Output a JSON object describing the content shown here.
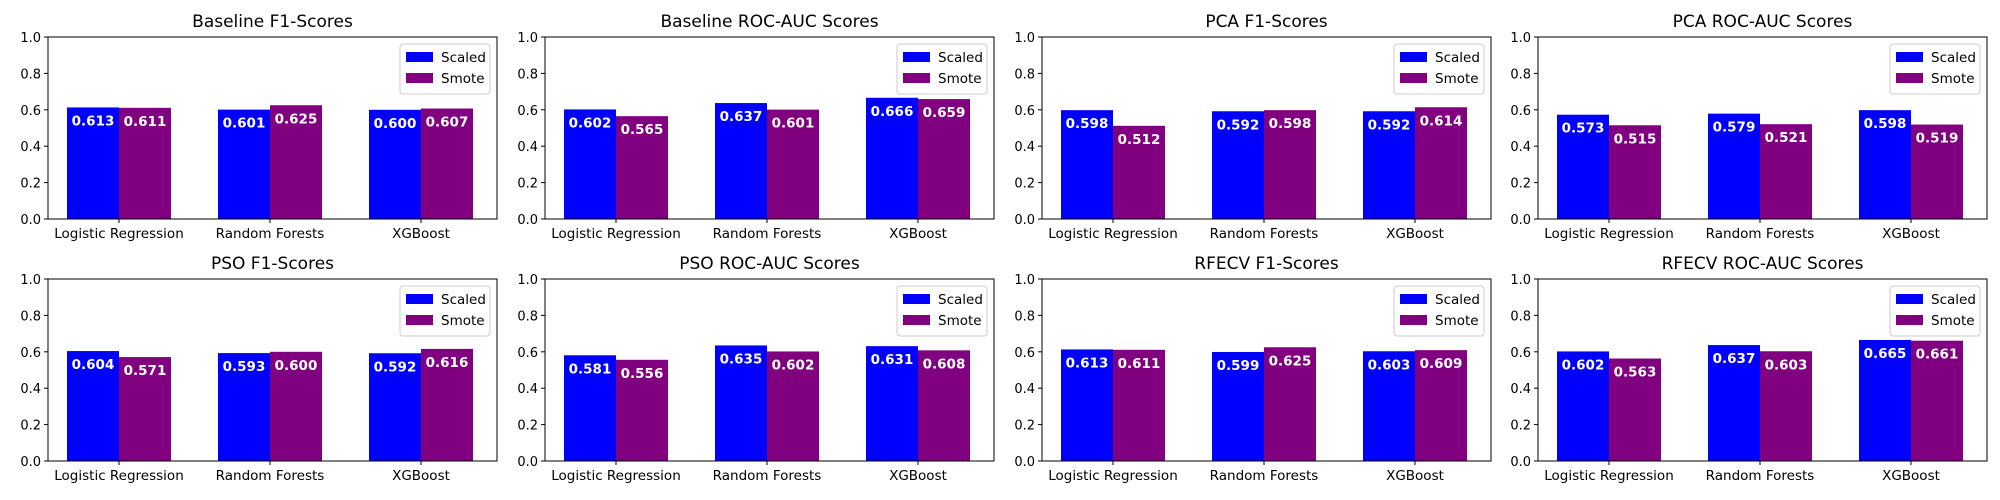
{
  "chart_data": [
    {
      "type": "bar",
      "title": "Baseline F1-Scores",
      "categories": [
        "Logistic Regression",
        "Random Forests",
        "XGBoost"
      ],
      "series": [
        {
          "name": "Scaled",
          "color": "#0000ff",
          "values": [
            0.613,
            0.601,
            0.6
          ],
          "labels": [
            "0.613",
            "0.601",
            "0.600"
          ]
        },
        {
          "name": "Smote",
          "color": "#800080",
          "values": [
            0.611,
            0.625,
            0.607
          ],
          "labels": [
            "0.611",
            "0.625",
            "0.607"
          ]
        }
      ],
      "ylim": [
        0,
        1
      ],
      "yticks": [
        "0.0",
        "0.2",
        "0.4",
        "0.6",
        "0.8",
        "1.0"
      ],
      "legend": "upper-right",
      "grid": false
    },
    {
      "type": "bar",
      "title": "Baseline ROC-AUC Scores",
      "categories": [
        "Logistic Regression",
        "Random Forests",
        "XGBoost"
      ],
      "series": [
        {
          "name": "Scaled",
          "color": "#0000ff",
          "values": [
            0.602,
            0.637,
            0.666
          ],
          "labels": [
            "0.602",
            "0.637",
            "0.666"
          ]
        },
        {
          "name": "Smote",
          "color": "#800080",
          "values": [
            0.565,
            0.601,
            0.659
          ],
          "labels": [
            "0.565",
            "0.601",
            "0.659"
          ]
        }
      ],
      "ylim": [
        0,
        1
      ],
      "yticks": [
        "0.0",
        "0.2",
        "0.4",
        "0.6",
        "0.8",
        "1.0"
      ],
      "legend": "upper-right",
      "grid": false
    },
    {
      "type": "bar",
      "title": "PCA F1-Scores",
      "categories": [
        "Logistic Regression",
        "Random Forests",
        "XGBoost"
      ],
      "series": [
        {
          "name": "Scaled",
          "color": "#0000ff",
          "values": [
            0.598,
            0.592,
            0.592
          ],
          "labels": [
            "0.598",
            "0.592",
            "0.592"
          ]
        },
        {
          "name": "Smote",
          "color": "#800080",
          "values": [
            0.512,
            0.598,
            0.614
          ],
          "labels": [
            "0.512",
            "0.598",
            "0.614"
          ]
        }
      ],
      "ylim": [
        0,
        1
      ],
      "yticks": [
        "0.0",
        "0.2",
        "0.4",
        "0.6",
        "0.8",
        "1.0"
      ],
      "legend": "upper-right",
      "grid": false
    },
    {
      "type": "bar",
      "title": "PCA ROC-AUC Scores",
      "categories": [
        "Logistic Regression",
        "Random Forests",
        "XGBoost"
      ],
      "series": [
        {
          "name": "Scaled",
          "color": "#0000ff",
          "values": [
            0.573,
            0.579,
            0.598
          ],
          "labels": [
            "0.573",
            "0.579",
            "0.598"
          ]
        },
        {
          "name": "Smote",
          "color": "#800080",
          "values": [
            0.515,
            0.521,
            0.519
          ],
          "labels": [
            "0.515",
            "0.521",
            "0.519"
          ]
        }
      ],
      "ylim": [
        0,
        1
      ],
      "yticks": [
        "0.0",
        "0.2",
        "0.4",
        "0.6",
        "0.8",
        "1.0"
      ],
      "legend": "upper-right",
      "grid": false
    },
    {
      "type": "bar",
      "title": "PSO F1-Scores",
      "categories": [
        "Logistic Regression",
        "Random Forests",
        "XGBoost"
      ],
      "series": [
        {
          "name": "Scaled",
          "color": "#0000ff",
          "values": [
            0.604,
            0.593,
            0.592
          ],
          "labels": [
            "0.604",
            "0.593",
            "0.592"
          ]
        },
        {
          "name": "Smote",
          "color": "#800080",
          "values": [
            0.571,
            0.6,
            0.616
          ],
          "labels": [
            "0.571",
            "0.600",
            "0.616"
          ]
        }
      ],
      "ylim": [
        0,
        1
      ],
      "yticks": [
        "0.0",
        "0.2",
        "0.4",
        "0.6",
        "0.8",
        "1.0"
      ],
      "legend": "upper-right",
      "grid": false
    },
    {
      "type": "bar",
      "title": "PSO ROC-AUC Scores",
      "categories": [
        "Logistic Regression",
        "Random Forests",
        "XGBoost"
      ],
      "series": [
        {
          "name": "Scaled",
          "color": "#0000ff",
          "values": [
            0.581,
            0.635,
            0.631
          ],
          "labels": [
            "0.581",
            "0.635",
            "0.631"
          ]
        },
        {
          "name": "Smote",
          "color": "#800080",
          "values": [
            0.556,
            0.602,
            0.608
          ],
          "labels": [
            "0.556",
            "0.602",
            "0.608"
          ]
        }
      ],
      "ylim": [
        0,
        1
      ],
      "yticks": [
        "0.0",
        "0.2",
        "0.4",
        "0.6",
        "0.8",
        "1.0"
      ],
      "legend": "upper-right",
      "grid": false
    },
    {
      "type": "bar",
      "title": "RFECV F1-Scores",
      "categories": [
        "Logistic Regression",
        "Random Forests",
        "XGBoost"
      ],
      "series": [
        {
          "name": "Scaled",
          "color": "#0000ff",
          "values": [
            0.613,
            0.599,
            0.603
          ],
          "labels": [
            "0.613",
            "0.599",
            "0.603"
          ]
        },
        {
          "name": "Smote",
          "color": "#800080",
          "values": [
            0.611,
            0.625,
            0.609
          ],
          "labels": [
            "0.611",
            "0.625",
            "0.609"
          ]
        }
      ],
      "ylim": [
        0,
        1
      ],
      "yticks": [
        "0.0",
        "0.2",
        "0.4",
        "0.6",
        "0.8",
        "1.0"
      ],
      "legend": "upper-right",
      "grid": false
    },
    {
      "type": "bar",
      "title": "RFECV ROC-AUC Scores",
      "categories": [
        "Logistic Regression",
        "Random Forests",
        "XGBoost"
      ],
      "series": [
        {
          "name": "Scaled",
          "color": "#0000ff",
          "values": [
            0.602,
            0.637,
            0.665
          ],
          "labels": [
            "0.602",
            "0.637",
            "0.665"
          ]
        },
        {
          "name": "Smote",
          "color": "#800080",
          "values": [
            0.563,
            0.603,
            0.661
          ],
          "labels": [
            "0.563",
            "0.603",
            "0.661"
          ]
        }
      ],
      "ylim": [
        0,
        1
      ],
      "yticks": [
        "0.0",
        "0.2",
        "0.4",
        "0.6",
        "0.8",
        "1.0"
      ],
      "legend": "upper-right",
      "grid": false
    }
  ]
}
